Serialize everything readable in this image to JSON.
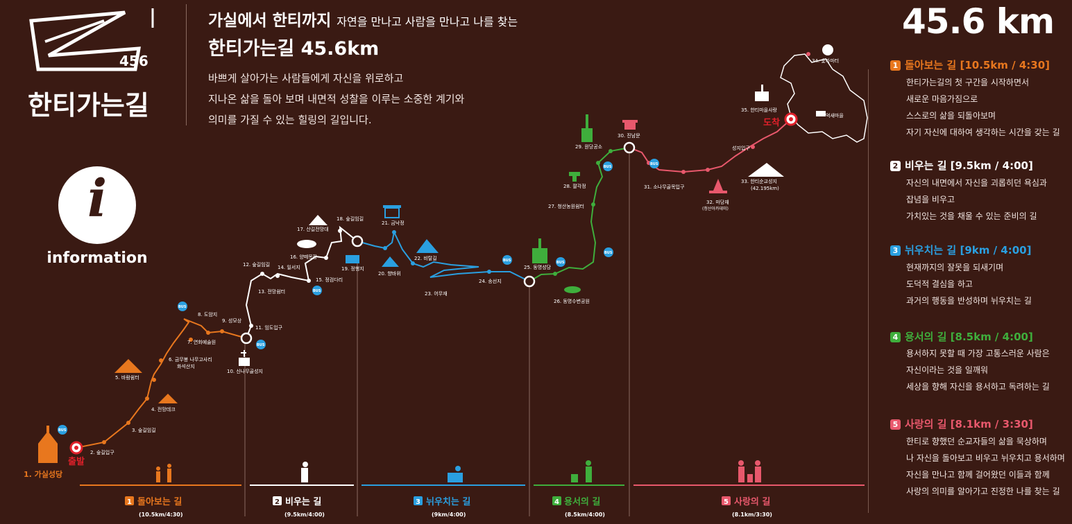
{
  "header": {
    "title_main": "가실에서 한티까지",
    "title_sub": "자연을 만나고 사람을 만나고 나를 찾는",
    "title_line2": "한티가는길 45.6km",
    "desc": [
      "바쁘게 살아가는 사람들에게 자신을 위로하고",
      "지나온 삶을 돌아 보며 내면적 성찰을 이루는 소중한 계기와",
      "의미를 가질 수 있는 힐링의 길입니다."
    ]
  },
  "logo": {
    "number": "456",
    "text": "한티가는길"
  },
  "info": {
    "icon": "info-icon",
    "label": "information"
  },
  "total": "45.6 km",
  "colors": {
    "background": "#3a1a13",
    "s1": "#e8771e",
    "s2": "#ffffff",
    "s3": "#2a9fe0",
    "s4": "#3fae3c",
    "s5": "#e8586c",
    "accent_red": "#e0202a"
  },
  "sections": [
    {
      "num": "1",
      "name": "돌아보는 길",
      "info": "[10.5km / 4:30]",
      "lines": [
        "한티가는길의 첫 구간을 시작하면서",
        "새로운 마음가짐으로",
        "스스로의 삶을 되돌아보며",
        "자기 자신에 대하여 생각하는 시간을 갖는 길"
      ]
    },
    {
      "num": "2",
      "name": "비우는 길",
      "info": "[9.5km / 4:00]",
      "lines": [
        "자신의 내면에서 자신을 괴롭히던 욕심과",
        "잡념을 비우고",
        "가치있는 것을 채울 수 있는 준비의 길"
      ]
    },
    {
      "num": "3",
      "name": "뉘우치는 길",
      "info": "[9km / 4:00]",
      "lines": [
        "현재까지의 잘못을 되새기며",
        "도덕적 결심을 하고",
        "과거의 행동을 반성하며 뉘우치는 길"
      ]
    },
    {
      "num": "4",
      "name": "용서의 길",
      "info": "[8.5km / 4:00]",
      "lines": [
        "용서하지 못할 때 가장 고통스러운 사람은",
        "자신이라는 것을 일깨워",
        "세상을 향해 자신을 용서하고 독려하는 길"
      ]
    },
    {
      "num": "5",
      "name": "사랑의 길",
      "info": "[8.1km / 3:30]",
      "lines": [
        "한티로 향했던 순교자들의 삶을 묵상하며",
        "나 자신을 돌아보고 비우고 뉘우치고 용서하며",
        "자신을 만나고 함께 걸어왔던 이들과 함께",
        "사랑의 의미를 알아가고 진정한 나를 찾는 길"
      ]
    }
  ],
  "bottom": [
    {
      "num": "1",
      "name": "돌아보는 길",
      "sub": "(10.5km/4:30)"
    },
    {
      "num": "2",
      "name": "비우는 길",
      "sub": "(9.5km/4:00)"
    },
    {
      "num": "3",
      "name": "뉘우치는 길",
      "sub": "(9km/4:00)"
    },
    {
      "num": "4",
      "name": "용서의 길",
      "sub": "(8.5km/4:00)"
    },
    {
      "num": "5",
      "name": "사랑의 길",
      "sub": "(8.1km/3:30)"
    }
  ],
  "map": {
    "start": "출발",
    "end": "도착",
    "bus": "BUS",
    "stops": [
      "1. 가실성당",
      "2. 숲길입구",
      "3. 숲길임길",
      "4. 전망데크",
      "5. 바람쉼터",
      "6. 금무봉 나무고사리",
      "화석산지",
      "7. 연화예술원",
      "8. 도암지",
      "9. 성모상",
      "10. 신나무골성지",
      "11. 임도입구",
      "12. 숲길임길",
      "13. 전망쉼터",
      "14. 일서지",
      "15. 정검다리",
      "16. 양떼목장",
      "17. 산길전망대",
      "18. 숲길임길",
      "19. 정행지",
      "20. 향바위",
      "21. 금낙정",
      "22. 비탈길",
      "23. 어무재",
      "24. 송선지",
      "25. 동명성당",
      "26. 동명수변공원",
      "27. 청산농원쉼터",
      "28. 팔각정",
      "29. 원당공소",
      "30. 진남문",
      "31. 소나무골목입구",
      "32. 마당재",
      "(청산아카데미)",
      "33. 한티순교성지",
      "(42.195km)",
      "34. 숯가마터",
      "35. 한티마을사랑",
      "억새마을",
      "성지입구"
    ]
  }
}
